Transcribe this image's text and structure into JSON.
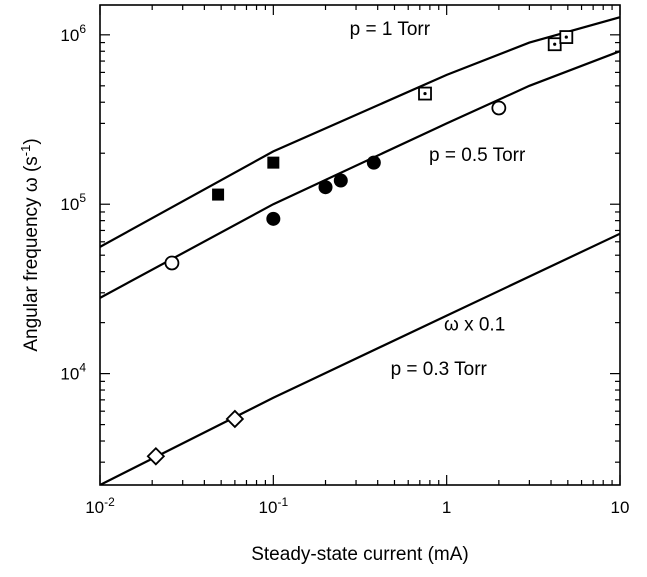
{
  "chart_data": {
    "type": "scatter",
    "x_scale": "log",
    "y_scale": "log",
    "xlim": [
      0.01,
      10
    ],
    "ylim": [
      2200,
      1500000
    ],
    "xlabel": "Steady-state current (mA)",
    "ylabel": "Angular frequency ω (s-1)",
    "ylabel_parts": {
      "main": "Angular frequency ω (s",
      "sup": "-1",
      "close": ")"
    },
    "x_ticks": [
      {
        "value": 0.01,
        "base": "10",
        "exp": "-2"
      },
      {
        "value": 0.1,
        "base": "10",
        "exp": "-1"
      },
      {
        "value": 1,
        "base": "1",
        "exp": ""
      },
      {
        "value": 10,
        "base": "10",
        "exp": ""
      }
    ],
    "y_ticks": [
      {
        "value": 10000,
        "base": "10",
        "exp": "4"
      },
      {
        "value": 100000,
        "base": "10",
        "exp": "5"
      },
      {
        "value": 1000000,
        "base": "10",
        "exp": "6"
      }
    ],
    "grid": false,
    "annotations": [
      {
        "text": "p = 1 Torr",
        "x": 0.47,
        "y": 1000000
      },
      {
        "text": "p = 0.5 Torr",
        "x": 1.5,
        "y": 180000
      },
      {
        "text": "ω x 0.1",
        "x": 1.45,
        "y": 18000
      },
      {
        "text": "p = 0.3 Torr",
        "x": 0.9,
        "y": 9800
      }
    ],
    "series": [
      {
        "line": [
          [
            0.01,
            56000
          ],
          [
            0.1,
            205000
          ],
          [
            1,
            580000
          ],
          [
            3,
            900000
          ],
          [
            10,
            1270000
          ]
        ],
        "markers": [
          {
            "shape": "square-filled",
            "points": [
              [
                0.048,
                114000
              ],
              [
                0.1,
                176000
              ]
            ]
          },
          {
            "shape": "square-dot",
            "points": [
              [
                0.75,
                450000
              ],
              [
                4.2,
                880000
              ],
              [
                4.9,
                970000
              ]
            ]
          }
        ]
      },
      {
        "line": [
          [
            0.01,
            28000
          ],
          [
            0.1,
            100000
          ],
          [
            1,
            300000
          ],
          [
            3,
            500000
          ],
          [
            10,
            800000
          ]
        ],
        "markers": [
          {
            "shape": "circle-open",
            "points": [
              [
                0.026,
                45000
              ],
              [
                2.0,
                370000
              ]
            ]
          },
          {
            "shape": "circle-filled",
            "points": [
              [
                0.1,
                82000
              ],
              [
                0.2,
                126000
              ],
              [
                0.245,
                138000
              ],
              [
                0.38,
                176000
              ]
            ]
          }
        ]
      },
      {
        "line": [
          [
            0.01,
            2200
          ],
          [
            0.1,
            7200
          ],
          [
            1,
            22000
          ],
          [
            10,
            67000
          ]
        ],
        "markers": [
          {
            "shape": "diamond-open",
            "points": [
              [
                0.021,
                3250
              ],
              [
                0.06,
                5400
              ]
            ]
          }
        ]
      }
    ]
  }
}
